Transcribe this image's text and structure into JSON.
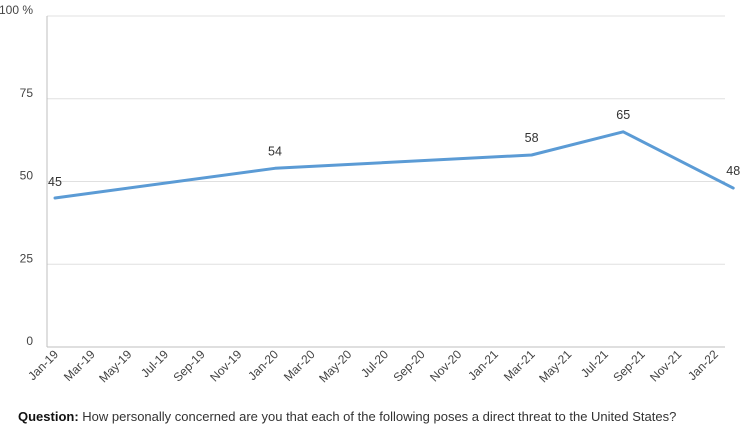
{
  "chart_data": {
    "type": "line",
    "title": "",
    "xlabel": "",
    "ylabel": "",
    "ylim": [
      0,
      100
    ],
    "y_ticks": [
      {
        "value": 0,
        "label": "0"
      },
      {
        "value": 25,
        "label": "25"
      },
      {
        "value": 50,
        "label": "50"
      },
      {
        "value": 75,
        "label": "75"
      },
      {
        "value": 100,
        "label": "100 %"
      }
    ],
    "x_ticks": [
      "Jan-19",
      "Mar-19",
      "May-19",
      "Jul-19",
      "Sep-19",
      "Nov-19",
      "Jan-20",
      "Mar-20",
      "May-20",
      "Jul-20",
      "Sep-20",
      "Nov-20",
      "Jan-21",
      "Mar-21",
      "May-21",
      "Jul-21",
      "Sep-21",
      "Nov-21",
      "Jan-22"
    ],
    "grid": true,
    "line_color": "#5b9bd5",
    "series": [
      {
        "points": [
          {
            "x": "Jan-19",
            "y": 45,
            "label": "45"
          },
          {
            "x": "Jan-20",
            "y": 54,
            "label": "54"
          },
          {
            "x": "Mar-21",
            "y": 58,
            "label": "58"
          },
          {
            "x": "Aug-21",
            "y": 65,
            "label": "65"
          },
          {
            "x": "Feb-22",
            "y": 48,
            "label": "48"
          }
        ]
      }
    ]
  },
  "footer": {
    "question_label": "Question:",
    "question_text": " How personally concerned are you that each of the following poses a direct threat to the United States?"
  }
}
